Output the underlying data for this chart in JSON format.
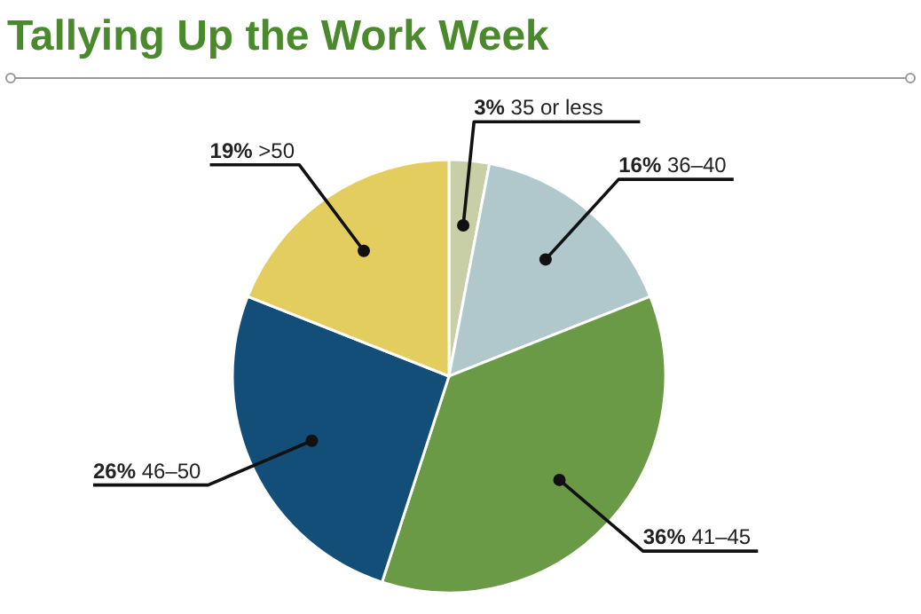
{
  "chart_data": {
    "type": "pie",
    "title": "Tallying Up the Work Week",
    "categories": [
      "35 or less",
      "36–40",
      "41–45",
      "46–50",
      ">50"
    ],
    "values": [
      3,
      16,
      36,
      26,
      19
    ],
    "value_labels": [
      "3%",
      "16%",
      "36%",
      "26%",
      "19%"
    ],
    "colors": [
      "#c8cfa6",
      "#b0c7cb",
      "#6b9a47",
      "#134e79",
      "#e2cd5e"
    ]
  }
}
